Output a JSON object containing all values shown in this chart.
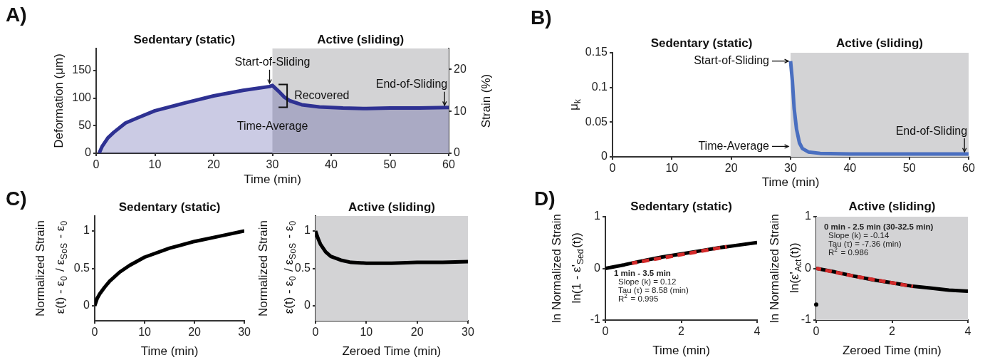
{
  "chart_data": [
    {
      "type": "area",
      "annotations": [
        "A)",
        "Sedentary (static)",
        {
          "text": "Start-of-Sliding",
          "x": 30,
          "y": 123
        },
        {
          "text": "Recovered",
          "x": 32.5,
          "y": 104
        },
        {
          "text": "End-of-Sliding",
          "x": 59.3,
          "y": 83
        },
        {
          "text": "Time-Average",
          "x": 30,
          "y": 48
        }
      ],
      "xlabel": "Time (min)",
      "ylabel": "Deformation (μm)",
      "y2label": "Strain (%)",
      "xlim": [
        0,
        60
      ],
      "xticks": [
        0,
        10,
        20,
        30,
        40,
        50,
        60
      ],
      "ylim": [
        0,
        190
      ],
      "yticks": [
        0,
        50,
        100,
        150
      ],
      "y2lim": [
        0,
        25
      ],
      "y2ticks": [
        0,
        10,
        20
      ],
      "bands": [
        {
          "axis": "x",
          "from": 30,
          "to": 60,
          "label": "Active (sliding)",
          "color": "#d3d3d5"
        }
      ],
      "x": [
        0.5,
        1,
        2,
        3,
        5,
        7,
        10,
        15,
        20,
        25,
        29.5,
        30,
        31,
        32,
        33,
        35,
        38,
        42,
        46,
        50,
        55,
        60
      ],
      "series": [
        {
          "color": "#2e3192",
          "values": [
            0,
            12,
            28,
            38,
            55,
            64,
            77,
            91,
            104,
            114,
            121,
            123,
            113,
            102,
            95,
            88,
            84,
            82,
            81,
            82,
            82,
            83
          ]
        }
      ]
    },
    {
      "type": "line",
      "annotations": [
        "B)",
        "Sedentary (static)",
        {
          "text": "Start-of-Sliding",
          "x": 30,
          "y": 0.138
        },
        {
          "text": "Time-Average",
          "x": 30,
          "y": 0.015
        },
        {
          "text": "End-of-Sliding",
          "x": 59.3,
          "y": 0.004
        }
      ],
      "xlabel": "Time (min)",
      "ylabel": "μ$_{k}$",
      "xlim": [
        0,
        60
      ],
      "xticks": [
        0,
        10,
        20,
        30,
        40,
        50,
        60
      ],
      "ylim": [
        0,
        0.15
      ],
      "yticks": [
        0,
        0.05,
        0.1,
        0.15
      ],
      "bands": [
        {
          "axis": "x",
          "from": 30,
          "to": 60,
          "label": "Active (sliding)",
          "color": "#d3d3d5"
        }
      ],
      "x": [
        30,
        30.3,
        30.6,
        31,
        31.5,
        32,
        33,
        35,
        40,
        50,
        60
      ],
      "series": [
        {
          "color": "#4a6fc0",
          "values": [
            0.138,
            0.11,
            0.07,
            0.04,
            0.02,
            0.012,
            0.007,
            0.005,
            0.004,
            0.004,
            0.004
          ]
        }
      ]
    },
    {
      "type": "line",
      "annotations": [
        "C)"
      ],
      "title": "Sedentary (static)",
      "xlabel": "Time (min)",
      "ylabel": "Normalized Strain\nε(t) - ε$_{0}$ / ε$_{SoS}$ - ε$_{0}$",
      "xlim": [
        0,
        30
      ],
      "xticks": [
        0,
        10,
        20,
        30
      ],
      "ylim": [
        -0.2,
        1.2
      ],
      "yticks": [
        0,
        0.5,
        1
      ],
      "x": [
        0,
        0.5,
        1,
        2,
        3,
        5,
        7,
        10,
        15,
        20,
        25,
        30
      ],
      "series": [
        {
          "color": "#000000",
          "values": [
            0,
            0.1,
            0.16,
            0.25,
            0.33,
            0.45,
            0.54,
            0.65,
            0.77,
            0.86,
            0.93,
            1
          ]
        }
      ]
    },
    {
      "type": "line",
      "title": "Active (sliding)",
      "xlabel": "Zeroed Time (min)",
      "ylabel": "Normalized Strain\nε(t) - ε$_{0}$ / ε$_{SoS}$ - ε$_{0}$",
      "xlim": [
        0,
        30
      ],
      "xticks": [
        0,
        10,
        20,
        30
      ],
      "ylim": [
        -0.2,
        1.2
      ],
      "yticks": [
        0,
        0.5,
        1
      ],
      "bands": [
        {
          "axis": "x",
          "from": 0,
          "to": 30,
          "color": "#d3d3d5"
        }
      ],
      "x": [
        0,
        0.5,
        1,
        2,
        3,
        5,
        7,
        10,
        15,
        20,
        25,
        30
      ],
      "series": [
        {
          "color": "#000000",
          "values": [
            1,
            0.9,
            0.82,
            0.72,
            0.66,
            0.61,
            0.58,
            0.57,
            0.57,
            0.58,
            0.58,
            0.59
          ]
        }
      ]
    },
    {
      "type": "line",
      "annotations": [
        "D)",
        "1 min - 3.5 min",
        "Slope (k) = 0.12",
        "Tau (τ) = 8.58 (min)",
        "R$^{2}$ = 0.995"
      ],
      "title": "Sedentary (static)",
      "xlabel": "Time (min)",
      "ylabel": "ln Normalized Strain\nln(1 - ε'$_{Sed}$(t))",
      "xlim": [
        0,
        4
      ],
      "xticks": [
        0,
        2,
        4
      ],
      "ylim": [
        -1,
        1
      ],
      "yticks": [
        -1,
        0,
        1
      ],
      "x": [
        0,
        0.5,
        1,
        1.5,
        2,
        2.5,
        3,
        3.5,
        4
      ],
      "series": [
        {
          "color": "#000000",
          "values": [
            0,
            0.07,
            0.15,
            0.22,
            0.28,
            0.34,
            0.4,
            0.45,
            0.5
          ]
        },
        {
          "type": "line",
          "color": "#d42a2a",
          "line_style": "dashed",
          "x": [
            0.7,
            3.2
          ],
          "values": [
            0.1,
            0.42
          ]
        }
      ]
    },
    {
      "type": "line",
      "annotations": [
        "0 min - 2.5 min (30-32.5 min)",
        "Slope (k) = -0.14",
        "Tau (τ) = -7.36 (min)",
        "R$^{2}$ = 0.986"
      ],
      "title": "Active (sliding)",
      "xlabel": "Zeroed Time (min)",
      "ylabel": "ln Normalized Strain\nln(ε'$_{Act}$(t))",
      "xlim": [
        0,
        4
      ],
      "xticks": [
        0,
        2,
        4
      ],
      "ylim": [
        -1,
        1
      ],
      "yticks": [
        -1,
        0,
        1
      ],
      "bands": [
        {
          "axis": "x",
          "from": 0,
          "to": 4,
          "color": "#d3d3d5"
        }
      ],
      "x": [
        0,
        0.5,
        1,
        1.5,
        2,
        2.5,
        3,
        3.5,
        4
      ],
      "series": [
        {
          "color": "#000000",
          "values": [
            0,
            -0.07,
            -0.15,
            -0.22,
            -0.28,
            -0.34,
            -0.38,
            -0.42,
            -0.44
          ]
        },
        {
          "type": "line",
          "color": "#d42a2a",
          "line_style": "dashed",
          "x": [
            0,
            1,
            2,
            2.55
          ],
          "values": [
            0,
            -0.15,
            -0.28,
            -0.35
          ]
        },
        {
          "type": "scatter",
          "color": "#000000",
          "x": [
            0
          ],
          "values": [
            -0.7
          ]
        }
      ]
    }
  ]
}
